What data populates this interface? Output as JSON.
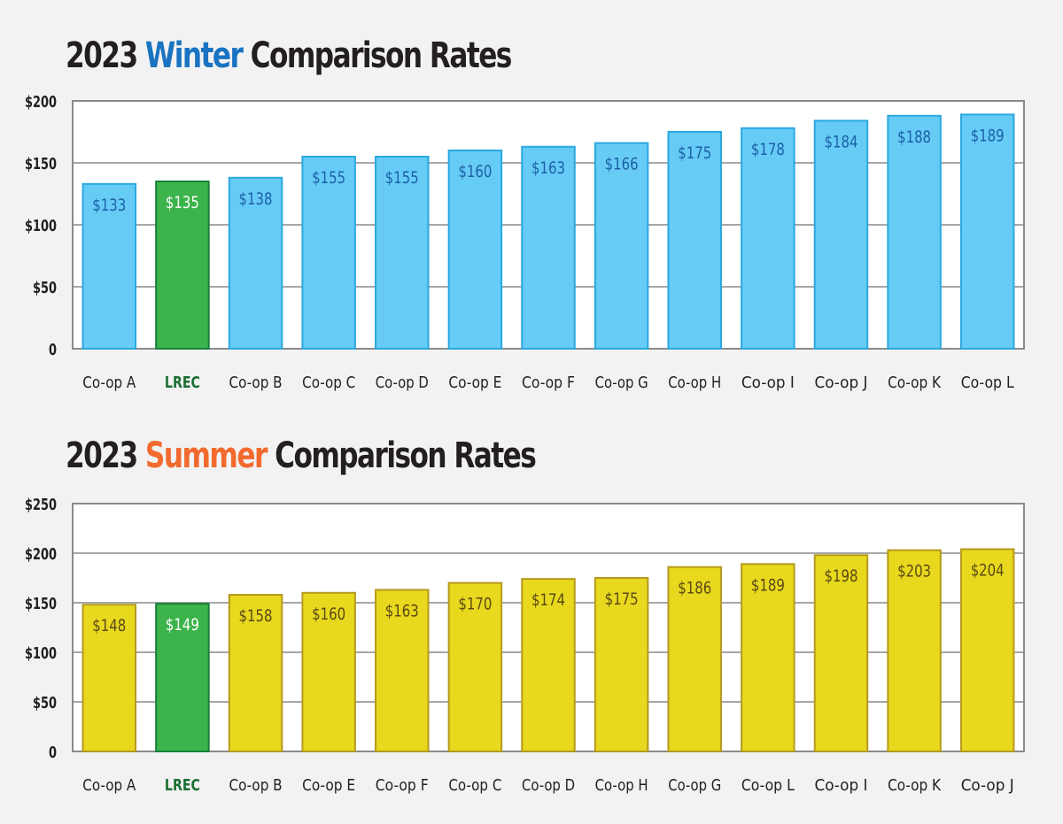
{
  "chart_data": [
    {
      "type": "bar",
      "title": "2023 Winter Comparison Rates",
      "title_parts": {
        "prefix": "2023",
        "season": "Winter",
        "suffix": "Comparison Rates"
      },
      "accent_color": "#1a73c1",
      "bar_color": "#66ccf5",
      "bar_stroke": "#2aa8e0",
      "value_label_color": "#1d5fa8",
      "highlight_category": "LREC",
      "highlight_color": "#3cb44b",
      "highlight_stroke": "#17803a",
      "highlight_label_color": "#ffffff",
      "categories": [
        "Co-op A",
        "LREC",
        "Co-op B",
        "Co-op C",
        "Co-op D",
        "Co-op E",
        "Co-op F",
        "Co-op G",
        "Co-op H",
        "Co-op I",
        "Co-op J",
        "Co-op K",
        "Co-op L"
      ],
      "values": [
        133,
        135,
        138,
        155,
        155,
        160,
        163,
        166,
        175,
        178,
        184,
        188,
        189
      ],
      "value_labels": [
        "$133",
        "$135",
        "$138",
        "$155",
        "$155",
        "$160",
        "$163",
        "$166",
        "$175",
        "$178",
        "$184",
        "$188",
        "$189"
      ],
      "ylim": [
        0,
        200
      ],
      "yticks": [
        0,
        50,
        100,
        150,
        200
      ],
      "ytick_labels": [
        "0",
        "$50",
        "$100",
        "$150",
        "$200"
      ],
      "xlabel": "",
      "ylabel": "",
      "grid": true
    },
    {
      "type": "bar",
      "title": "2023 Summer Comparison Rates",
      "title_parts": {
        "prefix": "2023",
        "season": "Summer",
        "suffix": "Comparison Rates"
      },
      "accent_color": "#f26a2e",
      "bar_color": "#e8d81e",
      "bar_stroke": "#b59a1d",
      "value_label_color": "#5a4a14",
      "highlight_category": "LREC",
      "highlight_color": "#3cb44b",
      "highlight_stroke": "#17803a",
      "highlight_label_color": "#ffffff",
      "categories": [
        "Co-op A",
        "LREC",
        "Co-op B",
        "Co-op E",
        "Co-op F",
        "Co-op C",
        "Co-op D",
        "Co-op H",
        "Co-op G",
        "Co-op L",
        "Co-op I",
        "Co-op K",
        "Co-op J"
      ],
      "values": [
        148,
        149,
        158,
        160,
        163,
        170,
        174,
        175,
        186,
        189,
        198,
        203,
        204
      ],
      "value_labels": [
        "$148",
        "$149",
        "$158",
        "$160",
        "$163",
        "$170",
        "$174",
        "$175",
        "$186",
        "$189",
        "$198",
        "$203",
        "$204"
      ],
      "ylim": [
        0,
        250
      ],
      "yticks": [
        0,
        50,
        100,
        150,
        200,
        250
      ],
      "ytick_labels": [
        "0",
        "$50",
        "$100",
        "$150",
        "$200",
        "$250"
      ],
      "xlabel": "",
      "ylabel": "",
      "grid": true
    }
  ]
}
